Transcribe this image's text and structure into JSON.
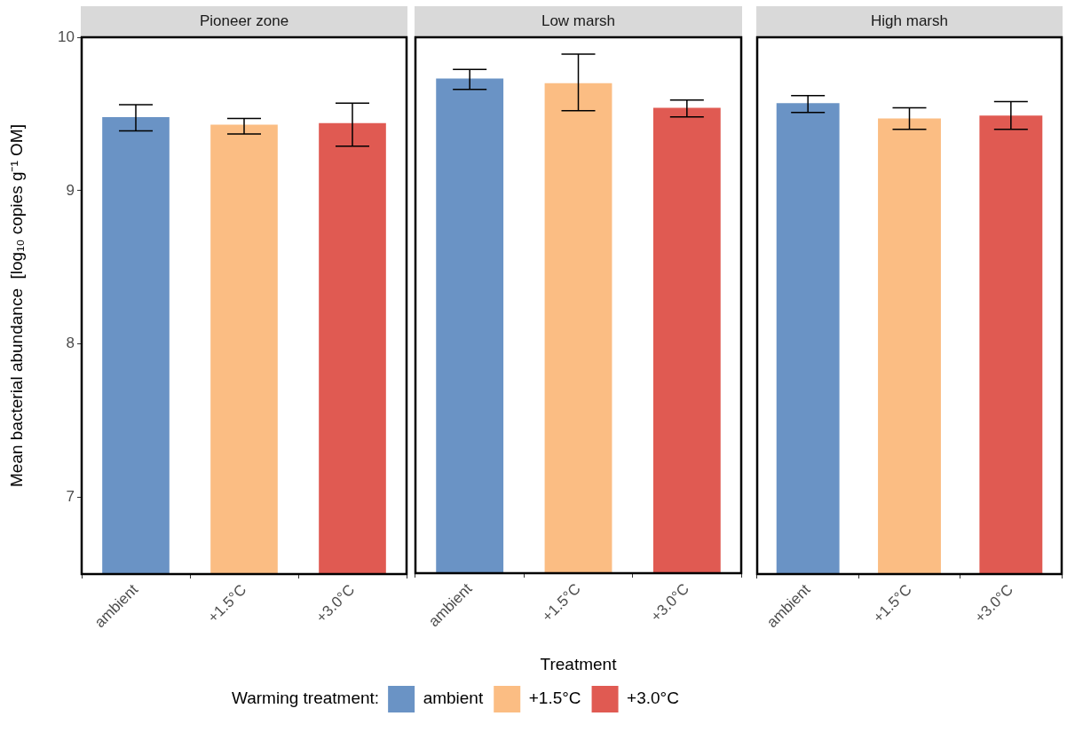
{
  "chart_data": [
    {
      "type": "bar",
      "title": "Pioneer zone",
      "ylabel": "Mean bacterial abundance  [log₁₀ copies g⁻¹ OM]",
      "categories": [
        "ambient",
        "+1.5°C",
        "+3.0°C"
      ],
      "ylim": [
        6.5,
        10
      ],
      "yticks": [
        7,
        8,
        9,
        10
      ],
      "series": [
        {
          "color": "#6a93c5",
          "values": [
            9.48,
            null,
            null
          ],
          "errors": [
            [
              9.39,
              9.56
            ],
            null,
            null
          ]
        },
        {
          "color": "#fbbd83",
          "values": [
            null,
            9.43,
            null
          ],
          "errors": [
            null,
            [
              9.37,
              9.47
            ],
            null
          ]
        },
        {
          "color": "#e05a52",
          "values": [
            null,
            null,
            9.44
          ],
          "errors": [
            null,
            null,
            [
              9.29,
              9.57
            ]
          ]
        }
      ]
    },
    {
      "type": "bar",
      "title": "Low marsh",
      "xlabel": "Treatment",
      "legend": "bottom",
      "legend_title": "Warming treatment:",
      "categories": [
        "ambient",
        "+1.5°C",
        "+3.0°C"
      ],
      "ylim": [
        6.5,
        10
      ],
      "yticks": [
        7,
        8,
        9,
        10
      ],
      "tick_labels": "x",
      "series": [
        {
          "name": "ambient",
          "color": "#6a93c5",
          "values": [
            9.73,
            null,
            null
          ],
          "errors": [
            [
              9.66,
              9.79
            ],
            null,
            null
          ]
        },
        {
          "name": "+1.5°C",
          "color": "#fbbd83",
          "values": [
            null,
            9.7,
            null
          ],
          "errors": [
            null,
            [
              9.52,
              9.89
            ],
            null
          ]
        },
        {
          "name": "+3.0°C",
          "color": "#e05a52",
          "values": [
            null,
            null,
            9.54
          ],
          "errors": [
            null,
            null,
            [
              9.48,
              9.59
            ]
          ]
        }
      ]
    },
    {
      "type": "bar",
      "title": "High marsh",
      "categories": [
        "ambient",
        "+1.5°C",
        "+3.0°C"
      ],
      "ylim": [
        6.5,
        10
      ],
      "yticks": [
        7,
        8,
        9,
        10
      ],
      "tick_labels": "x",
      "series": [
        {
          "color": "#6a93c5",
          "values": [
            9.57,
            null,
            null
          ],
          "errors": [
            [
              9.51,
              9.62
            ],
            null,
            null
          ]
        },
        {
          "color": "#fbbd83",
          "values": [
            null,
            9.47,
            null
          ],
          "errors": [
            null,
            [
              9.4,
              9.54
            ],
            null
          ]
        },
        {
          "color": "#e05a52",
          "values": [
            null,
            null,
            9.49
          ],
          "errors": [
            null,
            null,
            [
              9.4,
              9.58
            ]
          ]
        }
      ]
    }
  ]
}
